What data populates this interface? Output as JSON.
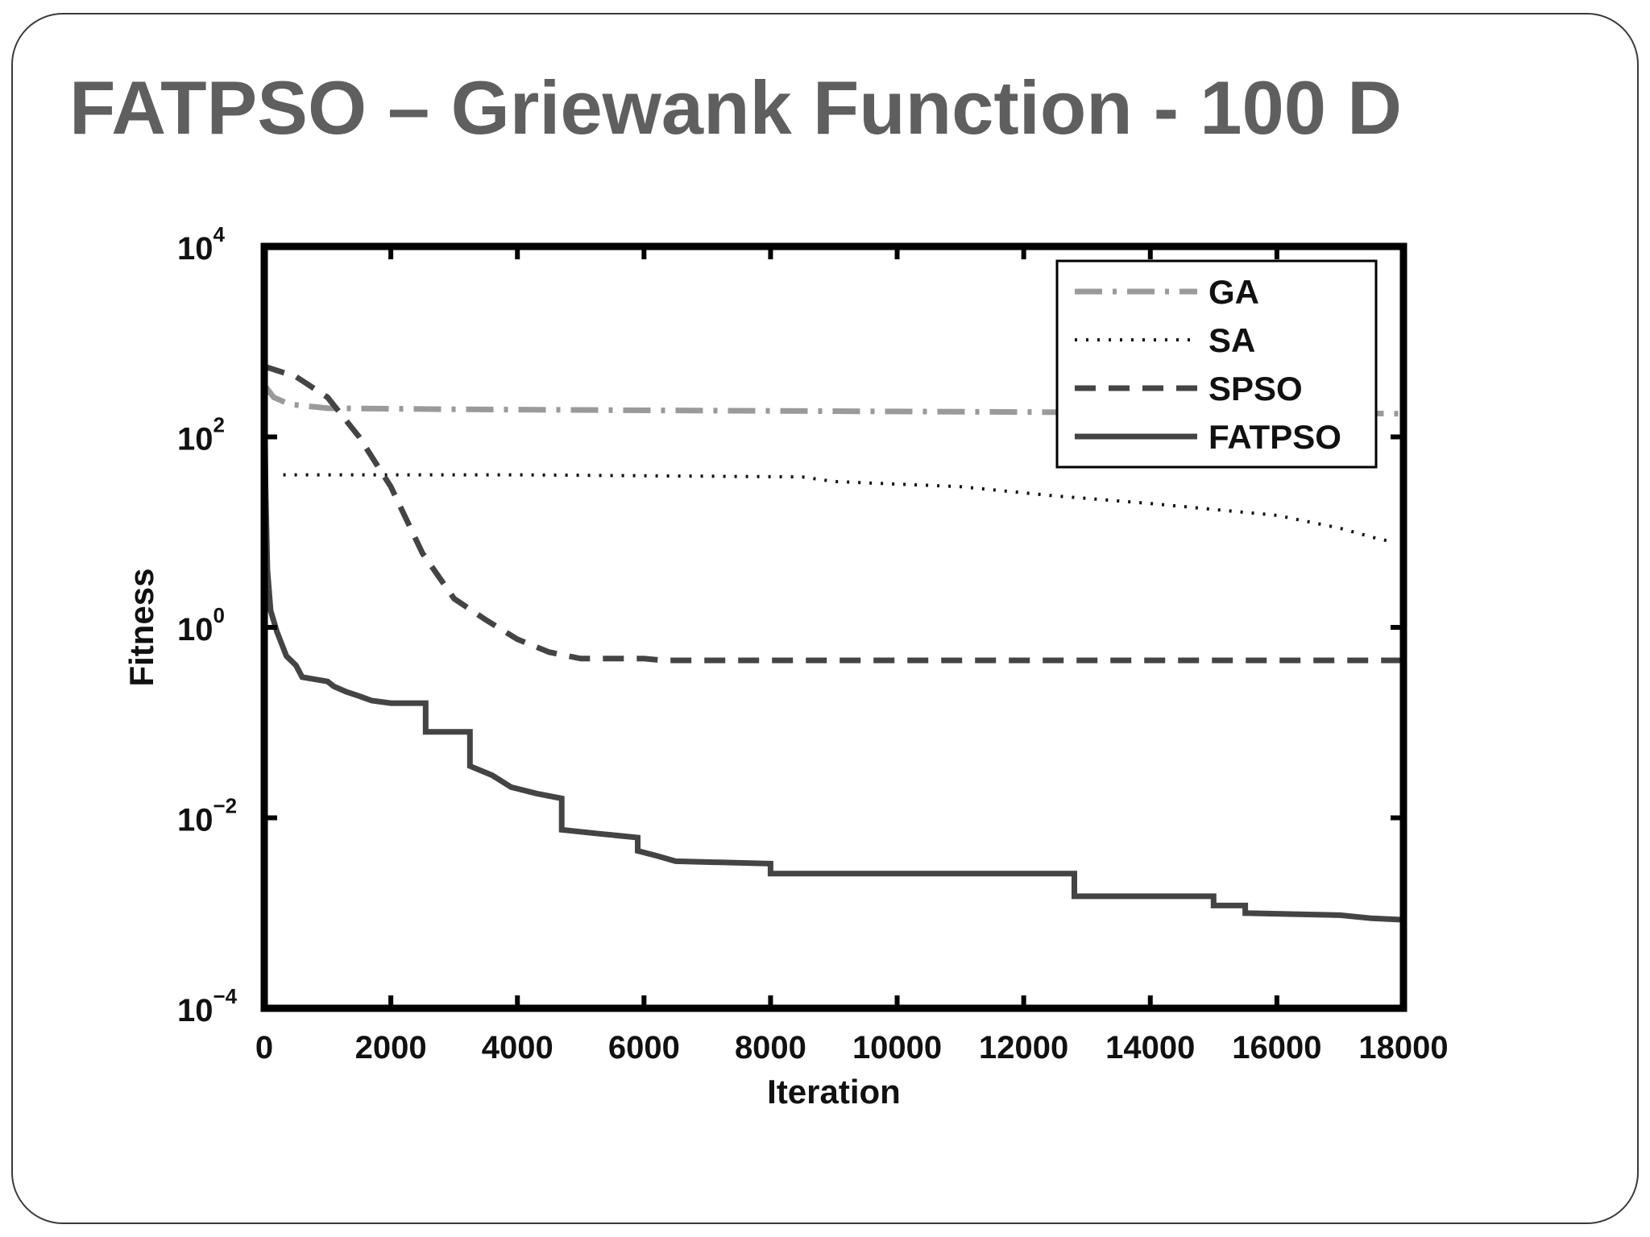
{
  "slide": {
    "title": "FATPSO – Griewank Function - 100 D"
  },
  "chart_data": {
    "type": "line",
    "title": "",
    "xlabel": "Iteration",
    "ylabel": "Fitness",
    "xlim": [
      0,
      18000
    ],
    "ylim": [
      0.0001,
      10000
    ],
    "yscale": "log",
    "grid": false,
    "legend_position": "top-right",
    "x_ticks": [
      {
        "value": 0,
        "label": "0"
      },
      {
        "value": 2000,
        "label": "2000"
      },
      {
        "value": 4000,
        "label": "4000"
      },
      {
        "value": 6000,
        "label": "6000"
      },
      {
        "value": 8000,
        "label": "8000"
      },
      {
        "value": 10000,
        "label": "10000"
      },
      {
        "value": 12000,
        "label": "12000"
      },
      {
        "value": 14000,
        "label": "14000"
      },
      {
        "value": 16000,
        "label": "16000"
      },
      {
        "value": 18000,
        "label": "18000"
      }
    ],
    "y_ticks": [
      {
        "value": 0.0001,
        "base": "10",
        "exp": "−4"
      },
      {
        "value": 0.01,
        "base": "10",
        "exp": "−2"
      },
      {
        "value": 1,
        "base": "10",
        "exp": "0"
      },
      {
        "value": 100,
        "base": "10",
        "exp": "2"
      },
      {
        "value": 10000,
        "base": "10",
        "exp": "4"
      }
    ],
    "series": [
      {
        "name": "GA",
        "color": "#9a9a9a",
        "style": "dashdot",
        "points": [
          [
            0,
            350
          ],
          [
            150,
            260
          ],
          [
            400,
            220
          ],
          [
            1000,
            200
          ],
          [
            3000,
            195
          ],
          [
            6000,
            190
          ],
          [
            10000,
            185
          ],
          [
            14000,
            180
          ],
          [
            17000,
            178
          ],
          [
            18000,
            175
          ]
        ]
      },
      {
        "name": "SA",
        "color": "#111111",
        "style": "dotted",
        "points": [
          [
            300,
            40
          ],
          [
            4000,
            40
          ],
          [
            8500,
            38
          ],
          [
            9000,
            34
          ],
          [
            11000,
            30
          ],
          [
            12500,
            24
          ],
          [
            14000,
            20
          ],
          [
            16000,
            15
          ],
          [
            17000,
            11
          ],
          [
            17600,
            8.5
          ],
          [
            17800,
            8
          ]
        ]
      },
      {
        "name": "SPSO",
        "color": "#444444",
        "style": "dashed",
        "points": [
          [
            0,
            550
          ],
          [
            500,
            430
          ],
          [
            1000,
            260
          ],
          [
            1500,
            100
          ],
          [
            2000,
            30
          ],
          [
            2500,
            6
          ],
          [
            3000,
            2
          ],
          [
            3500,
            1.2
          ],
          [
            4000,
            0.75
          ],
          [
            4500,
            0.55
          ],
          [
            5000,
            0.47
          ],
          [
            6000,
            0.47
          ],
          [
            6300,
            0.45
          ],
          [
            18000,
            0.45
          ]
        ]
      },
      {
        "name": "FATPSO",
        "color": "#444444",
        "style": "solid",
        "points": [
          [
            0,
            600
          ],
          [
            20,
            30
          ],
          [
            50,
            4
          ],
          [
            100,
            1.5
          ],
          [
            200,
            0.9
          ],
          [
            350,
            0.5
          ],
          [
            500,
            0.4
          ],
          [
            600,
            0.3
          ],
          [
            1000,
            0.27
          ],
          [
            1100,
            0.24
          ],
          [
            1300,
            0.21
          ],
          [
            1500,
            0.19
          ],
          [
            1700,
            0.17
          ],
          [
            2000,
            0.16
          ],
          [
            2550,
            0.16
          ],
          [
            2550,
            0.08
          ],
          [
            3250,
            0.08
          ],
          [
            3250,
            0.035
          ],
          [
            3600,
            0.028
          ],
          [
            3900,
            0.021
          ],
          [
            4300,
            0.018
          ],
          [
            4700,
            0.016
          ],
          [
            4700,
            0.0075
          ],
          [
            5300,
            0.0068
          ],
          [
            5900,
            0.0062
          ],
          [
            5900,
            0.0045
          ],
          [
            6200,
            0.004
          ],
          [
            6500,
            0.0035
          ],
          [
            8000,
            0.0033
          ],
          [
            8000,
            0.0026
          ],
          [
            12800,
            0.0026
          ],
          [
            12800,
            0.0015
          ],
          [
            15000,
            0.0015
          ],
          [
            15000,
            0.0012
          ],
          [
            15500,
            0.0012
          ],
          [
            15500,
            0.001
          ],
          [
            17000,
            0.00095
          ],
          [
            17500,
            0.00088
          ],
          [
            18000,
            0.00085
          ]
        ]
      }
    ]
  }
}
